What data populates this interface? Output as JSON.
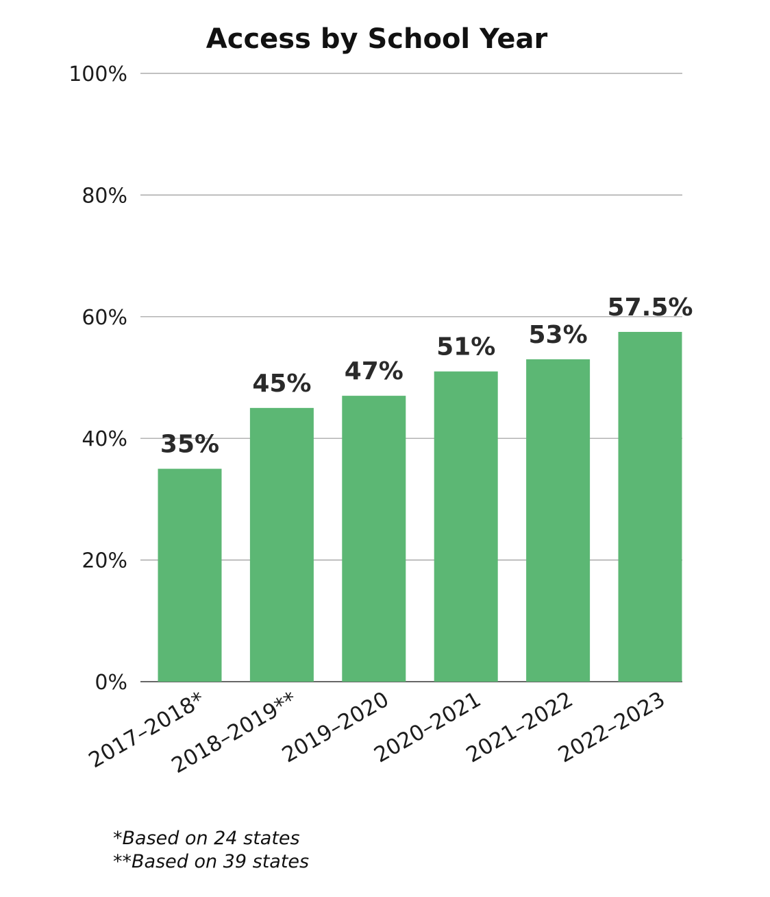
{
  "chart_data": {
    "type": "bar",
    "title": "Access by School Year",
    "xlabel": "",
    "ylabel": "",
    "categories": [
      "2017–2018*",
      "2018–2019**",
      "2019–2020",
      "2020–2021",
      "2021–2022",
      "2022–2023"
    ],
    "values": [
      35,
      45,
      47,
      51,
      53,
      57.5
    ],
    "data_labels": [
      "35%",
      "45%",
      "47%",
      "51%",
      "53%",
      "57.5%"
    ],
    "ylim": [
      0,
      100
    ],
    "y_ticks": [
      0,
      20,
      40,
      60,
      80,
      100
    ],
    "y_tick_labels": [
      "0%",
      "20%",
      "40%",
      "60%",
      "80%",
      "100%"
    ],
    "grid": true,
    "bar_color": "#5cb774"
  },
  "footnotes": [
    "*Based on 24 states",
    "**Based on 39 states"
  ]
}
